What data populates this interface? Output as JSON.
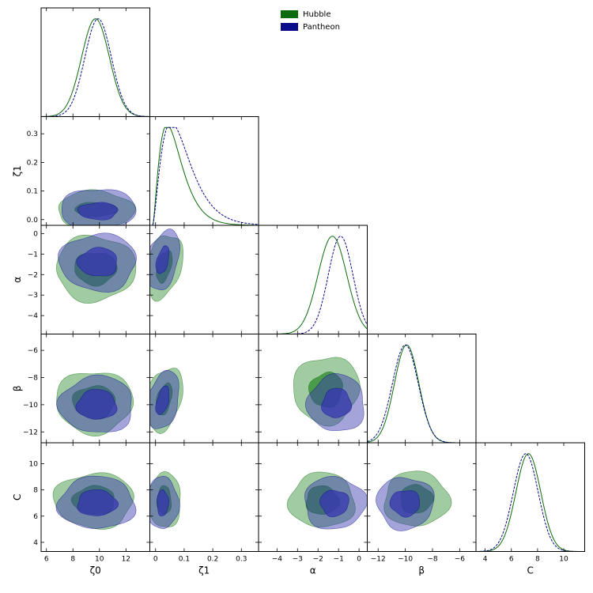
{
  "chart_data": {
    "type": "corner",
    "legend": [
      {
        "label": "Hubble",
        "color": "#0c6b0c",
        "fill": "#2e8b2e"
      },
      {
        "label": "Pantheon",
        "color": "#0a0a8a",
        "fill": "#3535b0"
      }
    ],
    "parameters": [
      {
        "name": "zeta0",
        "label": "ζ0",
        "range": [
          5.6,
          13.8
        ],
        "ticks": [
          6,
          8,
          10,
          12
        ]
      },
      {
        "name": "zeta1",
        "label": "ζ1",
        "range": [
          -0.02,
          0.36
        ],
        "ticks": [
          0.0,
          0.1,
          0.2,
          0.3
        ]
      },
      {
        "name": "alpha",
        "label": "α",
        "range": [
          -4.9,
          0.4
        ],
        "ticks": [
          -4,
          -3,
          -2,
          -1,
          0
        ]
      },
      {
        "name": "beta",
        "label": "β",
        "range": [
          -12.8,
          -4.8
        ],
        "ticks": [
          -12,
          -10,
          -8,
          -6
        ]
      },
      {
        "name": "C",
        "label": "C",
        "range": [
          3.3,
          11.6
        ],
        "ticks": [
          4,
          6,
          8,
          10
        ]
      }
    ],
    "posteriors": {
      "Hubble": {
        "mean": [
          9.7,
          0.04,
          -1.3,
          -9.9,
          7.3
        ],
        "sd1d": [
          1.05,
          0.035,
          0.7,
          0.9,
          0.95
        ]
      },
      "Pantheon": {
        "mean": [
          9.9,
          0.03,
          -0.9,
          -10.0,
          7.1
        ],
        "sd1d": [
          1.0,
          0.045,
          0.6,
          0.95,
          0.95
        ]
      }
    },
    "contours": {
      "1,0": {
        "Hubble": {
          "center": [
            9.7,
            0.035
          ],
          "sx": [
            1.6,
            2.9
          ],
          "sy": [
            0.025,
            0.065
          ]
        },
        "Pantheon": {
          "center": [
            9.9,
            0.03
          ],
          "sx": [
            1.5,
            2.8
          ],
          "sy": [
            0.03,
            0.08
          ]
        }
      },
      "2,0": {
        "Hubble": {
          "center": [
            9.7,
            -1.7
          ],
          "sx": [
            1.6,
            3.0
          ],
          "sy": [
            0.8,
            1.6
          ]
        },
        "Pantheon": {
          "center": [
            9.9,
            -1.4
          ],
          "sx": [
            1.5,
            2.9
          ],
          "sy": [
            0.7,
            1.4
          ]
        }
      },
      "2,1": {
        "Hubble": {
          "center": [
            0.03,
            -1.6
          ],
          "sx": [
            0.025,
            0.06
          ],
          "sy": [
            0.8,
            1.6
          ]
        },
        "Pantheon": {
          "center": [
            0.025,
            -1.3
          ],
          "sx": [
            0.02,
            0.055
          ],
          "sy": [
            0.7,
            1.5
          ]
        }
      },
      "3,0": {
        "Hubble": {
          "center": [
            9.6,
            -9.8
          ],
          "sx": [
            1.6,
            2.9
          ],
          "sy": [
            1.2,
            2.3
          ]
        },
        "Pantheon": {
          "center": [
            9.8,
            -10.0
          ],
          "sx": [
            1.5,
            2.8
          ],
          "sy": [
            1.1,
            2.1
          ]
        }
      },
      "3,1": {
        "Hubble": {
          "center": [
            0.03,
            -9.6
          ],
          "sx": [
            0.025,
            0.06
          ],
          "sy": [
            1.2,
            2.4
          ]
        },
        "Pantheon": {
          "center": [
            0.025,
            -9.7
          ],
          "sx": [
            0.02,
            0.055
          ],
          "sy": [
            1.1,
            2.2
          ]
        }
      },
      "3,2": {
        "Hubble": {
          "center": [
            -1.6,
            -8.9
          ],
          "sx": [
            0.8,
            1.6
          ],
          "sy": [
            1.3,
            2.5
          ]
        },
        "Pantheon": {
          "center": [
            -1.1,
            -9.9
          ],
          "sx": [
            0.7,
            1.4
          ],
          "sy": [
            1.1,
            2.1
          ]
        }
      },
      "4,0": {
        "Hubble": {
          "center": [
            9.6,
            7.2
          ],
          "sx": [
            1.6,
            3.0
          ],
          "sy": [
            1.1,
            2.1
          ]
        },
        "Pantheon": {
          "center": [
            9.8,
            7.0
          ],
          "sx": [
            1.5,
            2.9
          ],
          "sy": [
            1.0,
            2.0
          ]
        }
      },
      "4,1": {
        "Hubble": {
          "center": [
            0.03,
            7.2
          ],
          "sx": [
            0.025,
            0.06
          ],
          "sy": [
            1.1,
            2.1
          ]
        },
        "Pantheon": {
          "center": [
            0.025,
            7.0
          ],
          "sx": [
            0.02,
            0.055
          ],
          "sy": [
            1.0,
            2.0
          ]
        }
      },
      "4,2": {
        "Hubble": {
          "center": [
            -1.8,
            7.2
          ],
          "sx": [
            0.8,
            1.6
          ],
          "sy": [
            1.1,
            2.1
          ]
        },
        "Pantheon": {
          "center": [
            -1.2,
            7.0
          ],
          "sx": [
            0.7,
            1.5
          ],
          "sy": [
            1.0,
            2.0
          ]
        }
      },
      "4,3": {
        "Hubble": {
          "center": [
            -9.2,
            7.3
          ],
          "sx": [
            1.2,
            2.4
          ],
          "sy": [
            1.1,
            2.1
          ]
        },
        "Pantheon": {
          "center": [
            -10.0,
            7.0
          ],
          "sx": [
            1.1,
            2.1
          ],
          "sy": [
            1.0,
            2.0
          ]
        }
      }
    },
    "grid": false,
    "legend_position": "top-center"
  }
}
